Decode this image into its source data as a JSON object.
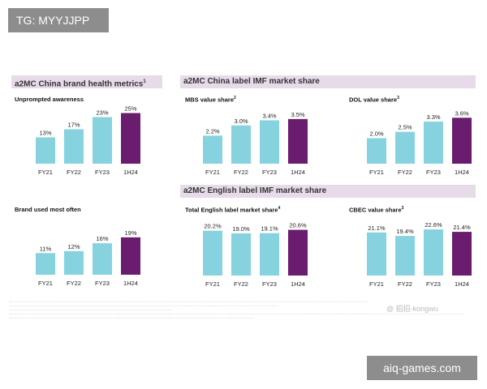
{
  "watermarks": {
    "top": "TG: MYYJJPP",
    "bottom": "aiq-games.com",
    "social": "@ 招招-kongwu"
  },
  "sections": {
    "brand_health": "a2MC China brand health metrics",
    "brand_health_sup": "1",
    "imf_share": "a2MC China label IMF market share",
    "english_share": "a2MC English label IMF market share"
  },
  "colors": {
    "light_bar": "#86d3df",
    "dark_bar": "#6a1d6e",
    "header_bg": "#e7dbea"
  },
  "chart_data": [
    {
      "id": "unprompted",
      "type": "bar",
      "title": "Unprompted awareness",
      "title_sup": "",
      "categories": [
        "FY21",
        "FY22",
        "FY23",
        "1H24"
      ],
      "values": [
        13,
        17,
        23,
        25
      ],
      "labels": [
        "13%",
        "17%",
        "23%",
        "25%"
      ],
      "ylim": [
        0,
        28
      ]
    },
    {
      "id": "brand-used",
      "type": "bar",
      "title": "Brand used most often",
      "title_sup": "",
      "categories": [
        "FY21",
        "FY22",
        "FY23",
        "1H24"
      ],
      "values": [
        11,
        12,
        16,
        19
      ],
      "labels": [
        "11%",
        "12%",
        "16%",
        "19%"
      ],
      "ylim": [
        0,
        28
      ]
    },
    {
      "id": "mbs",
      "type": "bar",
      "title": "MBS value share",
      "title_sup": "2",
      "categories": [
        "FY21",
        "FY22",
        "FY23",
        "1H24"
      ],
      "values": [
        2.2,
        3.0,
        3.4,
        3.5
      ],
      "labels": [
        "2.2%",
        "3.0%",
        "3.4%",
        "3.5%"
      ],
      "ylim": [
        0,
        4.0
      ]
    },
    {
      "id": "dol",
      "type": "bar",
      "title": "DOL value share",
      "title_sup": "3",
      "categories": [
        "FY21",
        "FY22",
        "FY23",
        "1H24"
      ],
      "values": [
        2.0,
        2.5,
        3.3,
        3.6
      ],
      "labels": [
        "2.0%",
        "2.5%",
        "3.3%",
        "3.6%"
      ],
      "ylim": [
        0,
        4.0
      ]
    },
    {
      "id": "total-english",
      "type": "bar",
      "title": "Total English label market share",
      "title_sup": "4",
      "categories": [
        "FY21",
        "FY22",
        "FY23",
        "1H24"
      ],
      "values": [
        20.2,
        19.0,
        19.1,
        20.6
      ],
      "labels": [
        "20.2%",
        "19.0%",
        "19.1%",
        "20.6%"
      ],
      "ylim": [
        0,
        23
      ]
    },
    {
      "id": "cbec",
      "type": "bar",
      "title": "CBEC value share",
      "title_sup": "3",
      "categories": [
        "FY21",
        "FY22",
        "FY23",
        "1H24"
      ],
      "values": [
        21.1,
        19.4,
        22.6,
        21.4
      ],
      "labels": [
        "21.1%",
        "19.4%",
        "22.6%",
        "21.4%"
      ],
      "ylim": [
        0,
        25
      ]
    }
  ]
}
